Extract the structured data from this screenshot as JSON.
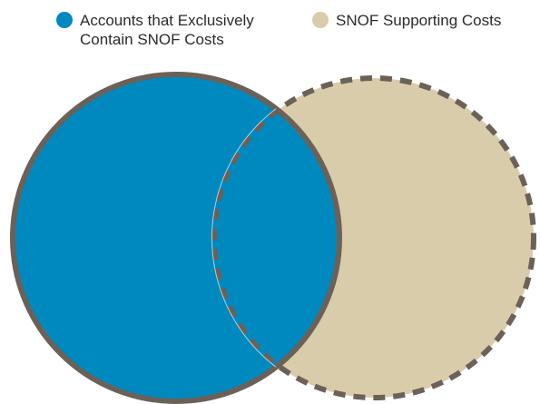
{
  "legend": {
    "items": [
      {
        "label": "Accounts that Exclusively\nContain SNOF Costs",
        "color": "#0089BF"
      },
      {
        "label": "SNOF Supporting Costs",
        "color": "#D9CCAB"
      }
    ]
  },
  "colors": {
    "accounts_fill": "#0089BF",
    "supporting_fill": "#D9CCAB",
    "outline": "#6B6158"
  }
}
